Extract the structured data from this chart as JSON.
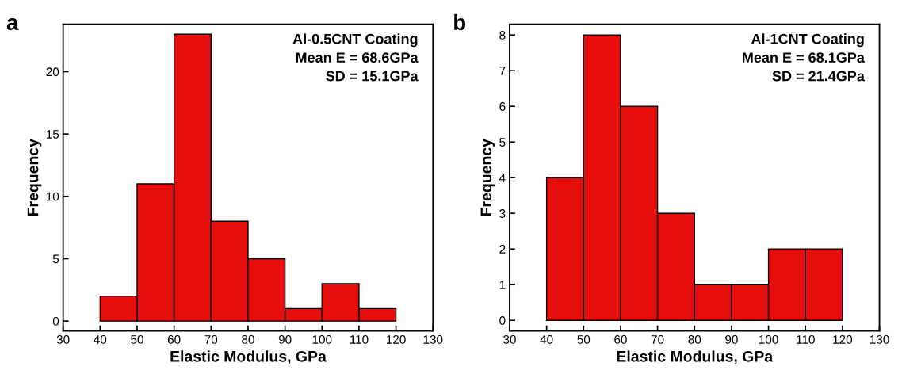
{
  "chart_data": [
    {
      "type": "histogram",
      "xlabel": "Elastic Modulus, GPa",
      "ylabel": "Frequency",
      "bins": [
        40,
        50,
        60,
        70,
        80,
        90,
        100,
        110,
        120
      ],
      "values": [
        2,
        11,
        23,
        8,
        5,
        1,
        3,
        1
      ],
      "color": "#e60d0d",
      "xlim": [
        30,
        130
      ],
      "xticks": [
        30,
        40,
        50,
        60,
        70,
        80,
        90,
        100,
        110,
        120,
        130
      ],
      "ylim": [
        -0.8,
        23.8
      ],
      "yticks": [
        0,
        5,
        10,
        15,
        20
      ],
      "grid": false,
      "annotations": [
        "a",
        "Al-0.5CNT Coating\nMean E = 68.6GPa\nSD = 15.1GPa"
      ]
    },
    {
      "type": "histogram",
      "xlabel": "Elastic Modulus, GPa",
      "ylabel": "Frequency",
      "bins": [
        40,
        50,
        60,
        70,
        80,
        90,
        100,
        110,
        120
      ],
      "values": [
        4,
        8,
        6,
        3,
        1,
        1,
        2,
        2
      ],
      "color": "#e60d0d",
      "xlim": [
        30,
        130
      ],
      "xticks": [
        30,
        40,
        50,
        60,
        70,
        80,
        90,
        100,
        110,
        120,
        130
      ],
      "ylim": [
        -0.3,
        8.3
      ],
      "yticks": [
        0,
        1,
        2,
        3,
        4,
        5,
        6,
        7,
        8
      ],
      "grid": false,
      "annotations": [
        "b",
        "Al-1CNT Coating\nMean E = 68.1GPa\nSD = 21.4GPa"
      ]
    }
  ]
}
